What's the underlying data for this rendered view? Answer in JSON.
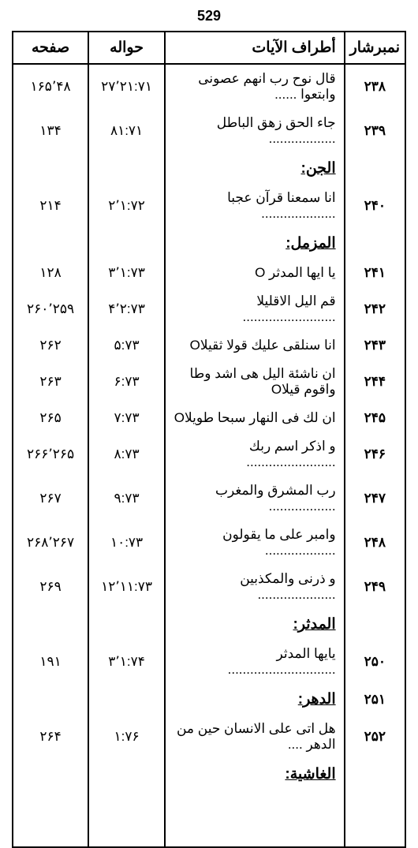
{
  "pageNumber": "529",
  "headers": {
    "num": "نمبرشار",
    "verse": "أطراف الآيات",
    "ref": "حواله",
    "page": "صفحه"
  },
  "rows": [
    {
      "num": "۲۳۸",
      "verse": "قال نوح رب انهم عصونى وابتعوا ......",
      "ref": "۲۷٬۲۱:۷۱",
      "page": "۱۶۵٬۴۸"
    },
    {
      "num": "۲۳۹",
      "verse": "جاء الحق زهق الباطل ..................",
      "ref": "۸۱:۷۱",
      "page": "۱۳۴"
    },
    {
      "section": "الجن:"
    },
    {
      "num": "۲۴۰",
      "verse": "انا سمعنا قرآن عجبا ....................",
      "ref": "۲٬۱:۷۲",
      "page": "۲۱۴"
    },
    {
      "section": "المزمل:"
    },
    {
      "num": "۲۴۱",
      "verse": "يا ايها المدثر O",
      "ref": "۳٬۱:۷۳",
      "page": "۱۲۸"
    },
    {
      "num": "۲۴۲",
      "verse": "قم اليل الاقليلا .........................",
      "ref": "۴٬۲:۷۳",
      "page": "۲۶۰٬۲۵۹"
    },
    {
      "num": "۲۴۳",
      "verse": "انا سنلقى عليك قولا ثقيلاO",
      "ref": "۵:۷۳",
      "page": "۲۶۲"
    },
    {
      "num": "۲۴۴",
      "verse": "ان ناشئة اليل هى اشد وطا واقوم قيلاO",
      "ref": "۶:۷۳",
      "page": "۲۶۳"
    },
    {
      "num": "۲۴۵",
      "verse": "ان لك فى النهار سبحا طويلاO",
      "ref": "۷:۷۳",
      "page": "۲۶۵"
    },
    {
      "num": "۲۴۶",
      "verse": "و اذكر اسم ربك ........................",
      "ref": "۸:۷۳",
      "page": "۲۶۶٬۲۶۵"
    },
    {
      "num": "۲۴۷",
      "verse": "رب المشرق والمغرب ..................",
      "ref": "۹:۷۳",
      "page": "۲۶۷"
    },
    {
      "num": "۲۴۸",
      "verse": "وامبر على ما يقولون ...................",
      "ref": "۱۰:۷۳",
      "page": "۲۶۸٬۲۶۷"
    },
    {
      "num": "۲۴۹",
      "verse": "و ذرنى والمكذبين .....................",
      "ref": "۱۲٬۱۱:۷۳",
      "page": "۲۶۹"
    },
    {
      "section": "المدثر:"
    },
    {
      "num": "۲۵۰",
      "verse": "يايها المدثر .............................",
      "ref": "۳٬۱:۷۴",
      "page": "۱۹۱"
    },
    {
      "num": "۲۵۱",
      "section_inline": "الدهر:"
    },
    {
      "num": "۲۵۲",
      "verse": "هل اتى على الانسان حين من الدهر ....",
      "ref": "۱:۷۶",
      "page": "۲۶۴"
    },
    {
      "section": "الغاشية:"
    },
    {
      "spacer": true
    },
    {
      "spacer": true
    }
  ]
}
